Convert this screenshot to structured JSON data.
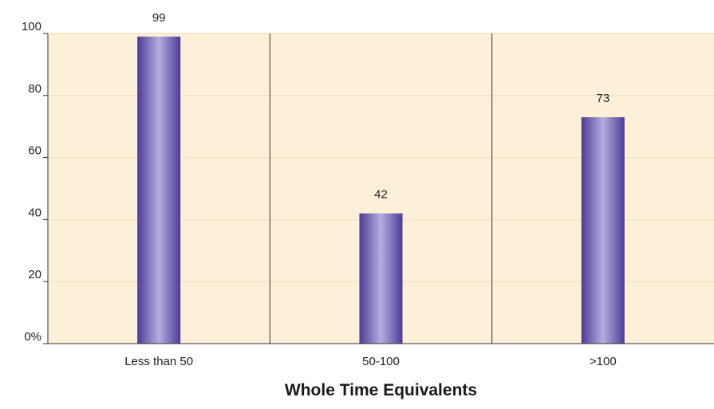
{
  "chart_data": {
    "type": "bar",
    "categories": [
      "Less than 50",
      "50-100",
      ">100"
    ],
    "values": [
      99,
      42,
      73
    ],
    "xlabel": "Whole Time Equivalents",
    "ylabel": "",
    "ylim": [
      0,
      100
    ],
    "yticks": [
      {
        "value": 0,
        "label": "0%"
      },
      {
        "value": 20,
        "label": "20"
      },
      {
        "value": 40,
        "label": "40"
      },
      {
        "value": 60,
        "label": "60"
      },
      {
        "value": 80,
        "label": "80"
      },
      {
        "value": 100,
        "label": "100"
      }
    ],
    "grid": "horizontal",
    "colors": {
      "plot_background": "#fdf0d8",
      "bar_dark": "#4e3b94",
      "bar_light": "#b3aee0",
      "gridline": "#f5e4c4",
      "axis": "#333333"
    }
  }
}
